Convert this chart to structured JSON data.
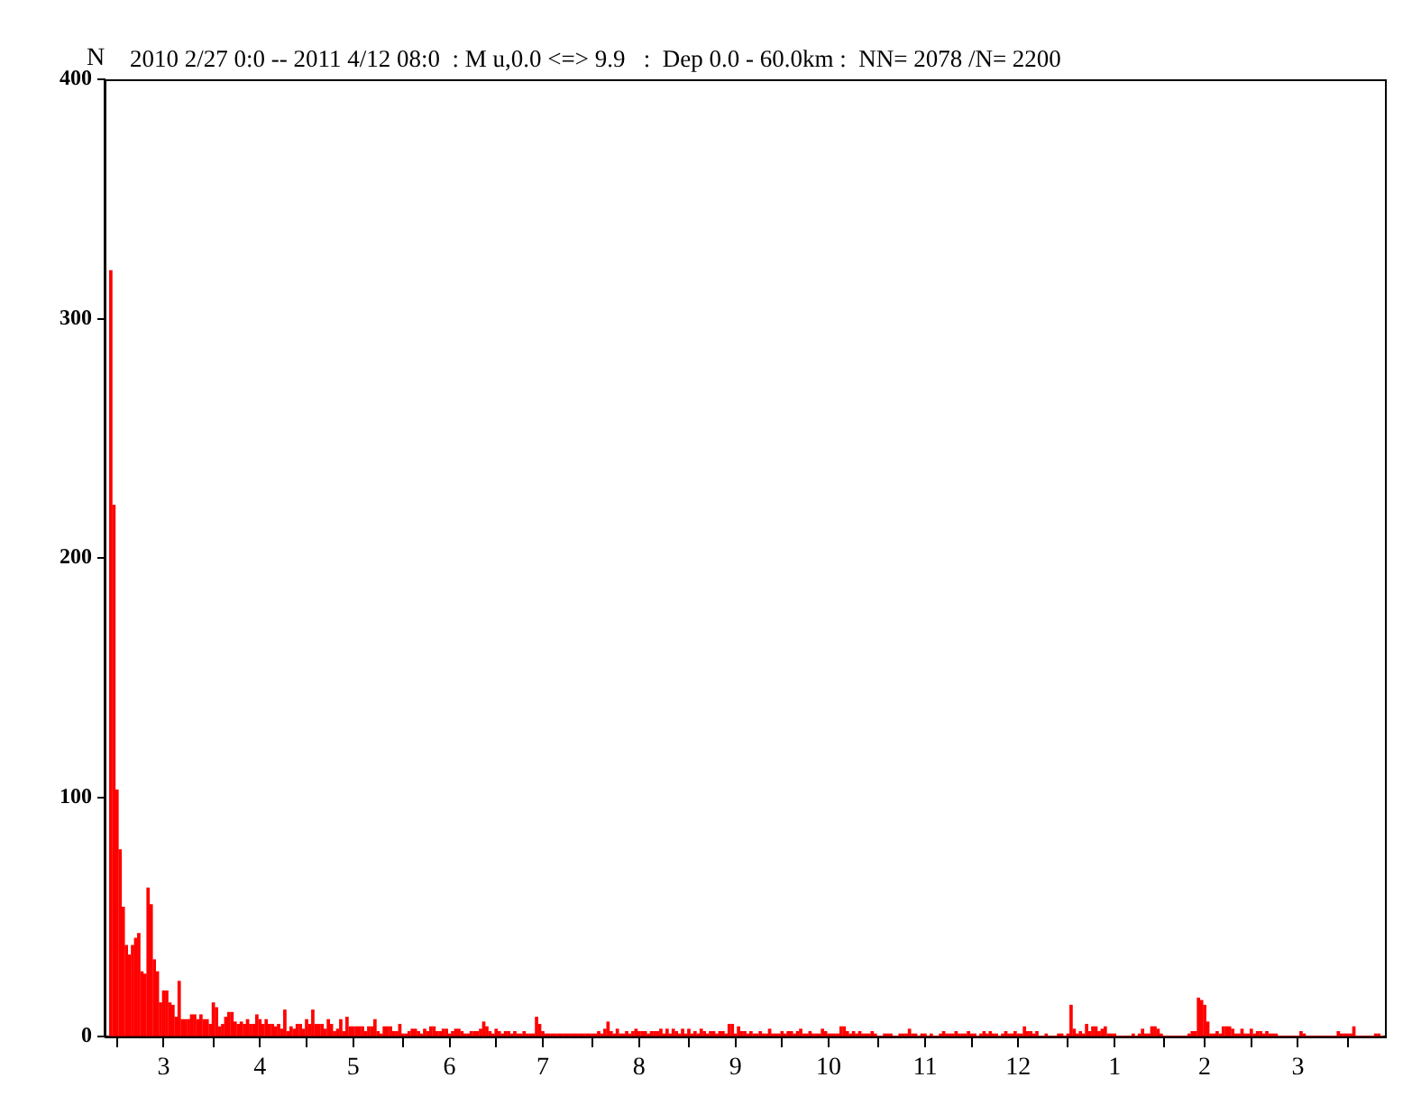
{
  "chart_data": {
    "type": "bar",
    "title": "2010 2/27 0:0 -- 2011 4/12 08:0  : M u,0.0 <=> 9.9   :  Dep 0.0 - 60.0km :  NN= 2078 /N= 2200",
    "ylabel": "N",
    "x": [
      "2010-02-27",
      "2010-02-28",
      "2010-03-01",
      "2010-03-02",
      "2010-03-03",
      "2010-03-04",
      "2010-03-05",
      "2010-03-06",
      "2010-03-07",
      "2010-03-08",
      "2010-03-09",
      "2010-03-10",
      "2010-03-11",
      "2010-03-12",
      "2010-03-13",
      "2010-03-14",
      "2010-03-15",
      "2010-03-16",
      "2010-03-17",
      "2010-03-18",
      "2010-03-19",
      "2010-03-20",
      "2010-03-21",
      "2010-03-22",
      "2010-03-23",
      "2010-03-24",
      "2010-03-25",
      "2010-03-26",
      "2010-03-27",
      "2010-03-28",
      "2010-03-29",
      "2010-03-30",
      "2010-03-31",
      "2010-04-01",
      "2010-04-02",
      "2010-04-03",
      "2010-04-04",
      "2010-04-05",
      "2010-04-06",
      "2010-04-07",
      "2010-04-08",
      "2010-04-09",
      "2010-04-10",
      "2010-04-11",
      "2010-04-12",
      "2010-04-13",
      "2010-04-14",
      "2010-04-15",
      "2010-04-16",
      "2010-04-17",
      "2010-04-18",
      "2010-04-19",
      "2010-04-20",
      "2010-04-21",
      "2010-04-22",
      "2010-04-23",
      "2010-04-24",
      "2010-04-25",
      "2010-04-26",
      "2010-04-27",
      "2010-04-28",
      "2010-04-29",
      "2010-04-30",
      "2010-05-01",
      "2010-05-02",
      "2010-05-03",
      "2010-05-04",
      "2010-05-05",
      "2010-05-06",
      "2010-05-07",
      "2010-05-08",
      "2010-05-09",
      "2010-05-10",
      "2010-05-11",
      "2010-05-12",
      "2010-05-13",
      "2010-05-14",
      "2010-05-15",
      "2010-05-16",
      "2010-05-17",
      "2010-05-18",
      "2010-05-19",
      "2010-05-20",
      "2010-05-21",
      "2010-05-22",
      "2010-05-23",
      "2010-05-24",
      "2010-05-25",
      "2010-05-26",
      "2010-05-27",
      "2010-05-28",
      "2010-05-29",
      "2010-05-30",
      "2010-05-31",
      "2010-06-01",
      "2010-06-02",
      "2010-06-03",
      "2010-06-04",
      "2010-06-05",
      "2010-06-06",
      "2010-06-07",
      "2010-06-08",
      "2010-06-09",
      "2010-06-10",
      "2010-06-11",
      "2010-06-12",
      "2010-06-13",
      "2010-06-14",
      "2010-06-15",
      "2010-06-16",
      "2010-06-17",
      "2010-06-18",
      "2010-06-19",
      "2010-06-20",
      "2010-06-21",
      "2010-06-22",
      "2010-06-23",
      "2010-06-24",
      "2010-06-25",
      "2010-06-26",
      "2010-06-27",
      "2010-06-28",
      "2010-06-29",
      "2010-06-30",
      "2010-07-01",
      "2010-07-02",
      "2010-07-03",
      "2010-07-04",
      "2010-07-05",
      "2010-07-06",
      "2010-07-07",
      "2010-07-08",
      "2010-07-09",
      "2010-07-10",
      "2010-07-11",
      "2010-07-12",
      "2010-07-13",
      "2010-07-14",
      "2010-07-15",
      "2010-07-16",
      "2010-07-17",
      "2010-07-18",
      "2010-07-19",
      "2010-07-20",
      "2010-07-21",
      "2010-07-22",
      "2010-07-23",
      "2010-07-24",
      "2010-07-25",
      "2010-07-26",
      "2010-07-27",
      "2010-07-28",
      "2010-07-29",
      "2010-07-30",
      "2010-07-31",
      "2010-08-01",
      "2010-08-02",
      "2010-08-03",
      "2010-08-04",
      "2010-08-05",
      "2010-08-06",
      "2010-08-07",
      "2010-08-08",
      "2010-08-09",
      "2010-08-10",
      "2010-08-11",
      "2010-08-12",
      "2010-08-13",
      "2010-08-14",
      "2010-08-15",
      "2010-08-16",
      "2010-08-17",
      "2010-08-18",
      "2010-08-19",
      "2010-08-20",
      "2010-08-21",
      "2010-08-22",
      "2010-08-23",
      "2010-08-24",
      "2010-08-25",
      "2010-08-26",
      "2010-08-27",
      "2010-08-28",
      "2010-08-29",
      "2010-08-30",
      "2010-08-31",
      "2010-09-01",
      "2010-09-02",
      "2010-09-03",
      "2010-09-04",
      "2010-09-05",
      "2010-09-06",
      "2010-09-07",
      "2010-09-08",
      "2010-09-09",
      "2010-09-10",
      "2010-09-11",
      "2010-09-12",
      "2010-09-13",
      "2010-09-14",
      "2010-09-15",
      "2010-09-16",
      "2010-09-17",
      "2010-09-18",
      "2010-09-19",
      "2010-09-20",
      "2010-09-21",
      "2010-09-22",
      "2010-09-23",
      "2010-09-24",
      "2010-09-25",
      "2010-09-26",
      "2010-09-27",
      "2010-09-28",
      "2010-09-29",
      "2010-09-30",
      "2010-10-01",
      "2010-10-02",
      "2010-10-03",
      "2010-10-04",
      "2010-10-05",
      "2010-10-06",
      "2010-10-07",
      "2010-10-08",
      "2010-10-09",
      "2010-10-10",
      "2010-10-11",
      "2010-10-12",
      "2010-10-13",
      "2010-10-14",
      "2010-10-15",
      "2010-10-16",
      "2010-10-17",
      "2010-10-18",
      "2010-10-19",
      "2010-10-20",
      "2010-10-21",
      "2010-10-22",
      "2010-10-23",
      "2010-10-24",
      "2010-10-25",
      "2010-10-26",
      "2010-10-27",
      "2010-10-28",
      "2010-10-29",
      "2010-10-30",
      "2010-10-31",
      "2010-11-01",
      "2010-11-02",
      "2010-11-03",
      "2010-11-04",
      "2010-11-05",
      "2010-11-06",
      "2010-11-07",
      "2010-11-08",
      "2010-11-09",
      "2010-11-10",
      "2010-11-11",
      "2010-11-12",
      "2010-11-13",
      "2010-11-14",
      "2010-11-15",
      "2010-11-16",
      "2010-11-17",
      "2010-11-18",
      "2010-11-19",
      "2010-11-20",
      "2010-11-21",
      "2010-11-22",
      "2010-11-23",
      "2010-11-24",
      "2010-11-25",
      "2010-11-26",
      "2010-11-27",
      "2010-11-28",
      "2010-11-29",
      "2010-11-30",
      "2010-12-01",
      "2010-12-02",
      "2010-12-03",
      "2010-12-04",
      "2010-12-05",
      "2010-12-06",
      "2010-12-07",
      "2010-12-08",
      "2010-12-09",
      "2010-12-10",
      "2010-12-11",
      "2010-12-12",
      "2010-12-13",
      "2010-12-14",
      "2010-12-15",
      "2010-12-16",
      "2010-12-17",
      "2010-12-18",
      "2010-12-19",
      "2010-12-20",
      "2010-12-21",
      "2010-12-22",
      "2010-12-23",
      "2010-12-24",
      "2010-12-25",
      "2010-12-26",
      "2010-12-27",
      "2010-12-28",
      "2010-12-29",
      "2010-12-30",
      "2010-12-31",
      "2011-01-01",
      "2011-01-02",
      "2011-01-03",
      "2011-01-04",
      "2011-01-05",
      "2011-01-06",
      "2011-01-07",
      "2011-01-08",
      "2011-01-09",
      "2011-01-10",
      "2011-01-11",
      "2011-01-12",
      "2011-01-13",
      "2011-01-14",
      "2011-01-15",
      "2011-01-16",
      "2011-01-17",
      "2011-01-18",
      "2011-01-19",
      "2011-01-20",
      "2011-01-21",
      "2011-01-22",
      "2011-01-23",
      "2011-01-24",
      "2011-01-25",
      "2011-01-26",
      "2011-01-27",
      "2011-01-28",
      "2011-01-29",
      "2011-01-30",
      "2011-01-31",
      "2011-02-01",
      "2011-02-02",
      "2011-02-03",
      "2011-02-04",
      "2011-02-05",
      "2011-02-06",
      "2011-02-07",
      "2011-02-08",
      "2011-02-09",
      "2011-02-10",
      "2011-02-11",
      "2011-02-12",
      "2011-02-13",
      "2011-02-14",
      "2011-02-15",
      "2011-02-16",
      "2011-02-17",
      "2011-02-18",
      "2011-02-19",
      "2011-02-20",
      "2011-02-21",
      "2011-02-22",
      "2011-02-23",
      "2011-02-24",
      "2011-02-25",
      "2011-02-26",
      "2011-02-27",
      "2011-02-28",
      "2011-03-01",
      "2011-03-02",
      "2011-03-03",
      "2011-03-04",
      "2011-03-05",
      "2011-03-06",
      "2011-03-07",
      "2011-03-08",
      "2011-03-09",
      "2011-03-10",
      "2011-03-11",
      "2011-03-12",
      "2011-03-13",
      "2011-03-14",
      "2011-03-15",
      "2011-03-16",
      "2011-03-17",
      "2011-03-18",
      "2011-03-19",
      "2011-03-20",
      "2011-03-21",
      "2011-03-22",
      "2011-03-23",
      "2011-03-24",
      "2011-03-25",
      "2011-03-26",
      "2011-03-27",
      "2011-03-28",
      "2011-03-29",
      "2011-03-30",
      "2011-03-31",
      "2011-04-01",
      "2011-04-02",
      "2011-04-03",
      "2011-04-04",
      "2011-04-05",
      "2011-04-06",
      "2011-04-07",
      "2011-04-08",
      "2011-04-09",
      "2011-04-10",
      "2011-04-11",
      "2011-04-12"
    ],
    "values": [
      320,
      222,
      103,
      78,
      54,
      38,
      34,
      38,
      41,
      43,
      27,
      26,
      62,
      55,
      32,
      27,
      14,
      19,
      19,
      14,
      13,
      8,
      23,
      7,
      7,
      7,
      9,
      9,
      7,
      9,
      7,
      7,
      5,
      14,
      12,
      4,
      5,
      8,
      10,
      10,
      6,
      5,
      6,
      5,
      7,
      5,
      5,
      9,
      7,
      5,
      7,
      5,
      5,
      4,
      5,
      3,
      11,
      2,
      4,
      3,
      5,
      5,
      3,
      7,
      5,
      11,
      5,
      5,
      5,
      3,
      7,
      5,
      2,
      3,
      7,
      2,
      8,
      4,
      4,
      4,
      4,
      4,
      2,
      4,
      4,
      7,
      2,
      1,
      4,
      4,
      4,
      2,
      2,
      5,
      1,
      1,
      2,
      3,
      3,
      2,
      1,
      3,
      2,
      4,
      4,
      2,
      2,
      3,
      3,
      1,
      2,
      3,
      3,
      2,
      1,
      1,
      2,
      2,
      2,
      3,
      6,
      4,
      2,
      1,
      3,
      2,
      1,
      2,
      2,
      1,
      2,
      1,
      1,
      2,
      1,
      1,
      1,
      8,
      5,
      2,
      1,
      1,
      1,
      1,
      1,
      1,
      1,
      1,
      1,
      1,
      1,
      1,
      1,
      1,
      1,
      1,
      1,
      2,
      1,
      3,
      6,
      2,
      1,
      3,
      1,
      1,
      2,
      1,
      2,
      3,
      2,
      2,
      2,
      1,
      2,
      2,
      2,
      3,
      1,
      3,
      1,
      3,
      2,
      1,
      3,
      1,
      3,
      1,
      2,
      1,
      3,
      2,
      1,
      2,
      2,
      1,
      2,
      2,
      1,
      5,
      5,
      1,
      4,
      2,
      2,
      1,
      2,
      1,
      1,
      2,
      1,
      1,
      3,
      1,
      1,
      1,
      2,
      1,
      2,
      2,
      1,
      2,
      3,
      1,
      1,
      2,
      1,
      1,
      1,
      3,
      2,
      1,
      1,
      1,
      1,
      4,
      4,
      2,
      1,
      2,
      1,
      2,
      1,
      1,
      1,
      2,
      1,
      0,
      0,
      1,
      1,
      1,
      0,
      0,
      1,
      1,
      1,
      3,
      1,
      1,
      0,
      1,
      1,
      0,
      1,
      0,
      0,
      1,
      2,
      1,
      1,
      1,
      2,
      1,
      1,
      1,
      2,
      1,
      1,
      0,
      1,
      2,
      1,
      2,
      1,
      1,
      0,
      1,
      2,
      1,
      1,
      2,
      1,
      1,
      4,
      2,
      2,
      1,
      2,
      0,
      0,
      1,
      0,
      0,
      0,
      1,
      1,
      0,
      1,
      13,
      3,
      1,
      2,
      1,
      5,
      2,
      4,
      4,
      2,
      3,
      4,
      1,
      1,
      1,
      0,
      0,
      0,
      0,
      0,
      1,
      0,
      1,
      3,
      1,
      1,
      4,
      4,
      3,
      1,
      0,
      0,
      0,
      0,
      0,
      0,
      0,
      0,
      1,
      2,
      2,
      16,
      15,
      13,
      6,
      1,
      1,
      2,
      1,
      4,
      4,
      4,
      3,
      1,
      1,
      3,
      1,
      1,
      3,
      1,
      2,
      2,
      1,
      2,
      1,
      1,
      1,
      0,
      0,
      0,
      0,
      0,
      0,
      0,
      2,
      1,
      0,
      0,
      0,
      0,
      0,
      0,
      0,
      0,
      0,
      0,
      2,
      1,
      1,
      1,
      1,
      4,
      0,
      0,
      0,
      0,
      0,
      0,
      1,
      1,
      0
    ],
    "color": "#ff0000",
    "xlim": [
      "2010-02-25",
      "2011-04-13"
    ],
    "xticks": [
      {
        "value": "2010-03-01",
        "label": null
      },
      {
        "value": "2010-03-16",
        "label": "3"
      },
      {
        "value": "2010-04-01",
        "label": null
      },
      {
        "value": "2010-04-16",
        "label": "4"
      },
      {
        "value": "2010-05-01",
        "label": null
      },
      {
        "value": "2010-05-16",
        "label": "5"
      },
      {
        "value": "2010-06-01",
        "label": null
      },
      {
        "value": "2010-06-16",
        "label": "6"
      },
      {
        "value": "2010-07-01",
        "label": null
      },
      {
        "value": "2010-07-16",
        "label": "7"
      },
      {
        "value": "2010-08-01",
        "label": null
      },
      {
        "value": "2010-08-16",
        "label": "8"
      },
      {
        "value": "2010-09-01",
        "label": null
      },
      {
        "value": "2010-09-16",
        "label": "9"
      },
      {
        "value": "2010-10-01",
        "label": null
      },
      {
        "value": "2010-10-16",
        "label": "10"
      },
      {
        "value": "2010-11-01",
        "label": null
      },
      {
        "value": "2010-11-16",
        "label": "11"
      },
      {
        "value": "2010-12-01",
        "label": null
      },
      {
        "value": "2010-12-16",
        "label": "12"
      },
      {
        "value": "2011-01-01",
        "label": null
      },
      {
        "value": "2011-01-16",
        "label": "1"
      },
      {
        "value": "2011-02-01",
        "label": null
      },
      {
        "value": "2011-02-14",
        "label": "2"
      },
      {
        "value": "2011-03-01",
        "label": null
      },
      {
        "value": "2011-03-16",
        "label": "3"
      },
      {
        "value": "2011-04-01",
        "label": null
      }
    ],
    "ylim": [
      0,
      400
    ],
    "yticks": [
      0,
      100,
      200,
      300,
      400
    ],
    "grid": false,
    "legend": false
  }
}
